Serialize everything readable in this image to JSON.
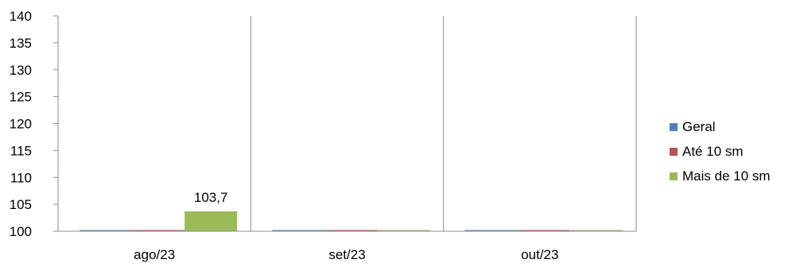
{
  "chart_data": {
    "type": "bar",
    "categories": [
      "ago/23",
      "set/23",
      "out/23"
    ],
    "series": [
      {
        "name": "Geral",
        "color": "#4F81BD",
        "values": [
          100,
          100,
          100
        ]
      },
      {
        "name": "Até 10 sm",
        "color": "#C0504D",
        "values": [
          100,
          100,
          100
        ]
      },
      {
        "name": "Mais de 10 sm",
        "color": "#9BBB59",
        "values": [
          103.7,
          100,
          100
        ]
      }
    ],
    "data_labels": [
      {
        "series": 2,
        "category": 0,
        "text": "103,7"
      }
    ],
    "y_ticks": [
      "100",
      "105",
      "110",
      "115",
      "120",
      "125",
      "130",
      "135",
      "140"
    ],
    "ylim": [
      100,
      140
    ],
    "legend_position": "right",
    "grid": "vertical category separators"
  }
}
